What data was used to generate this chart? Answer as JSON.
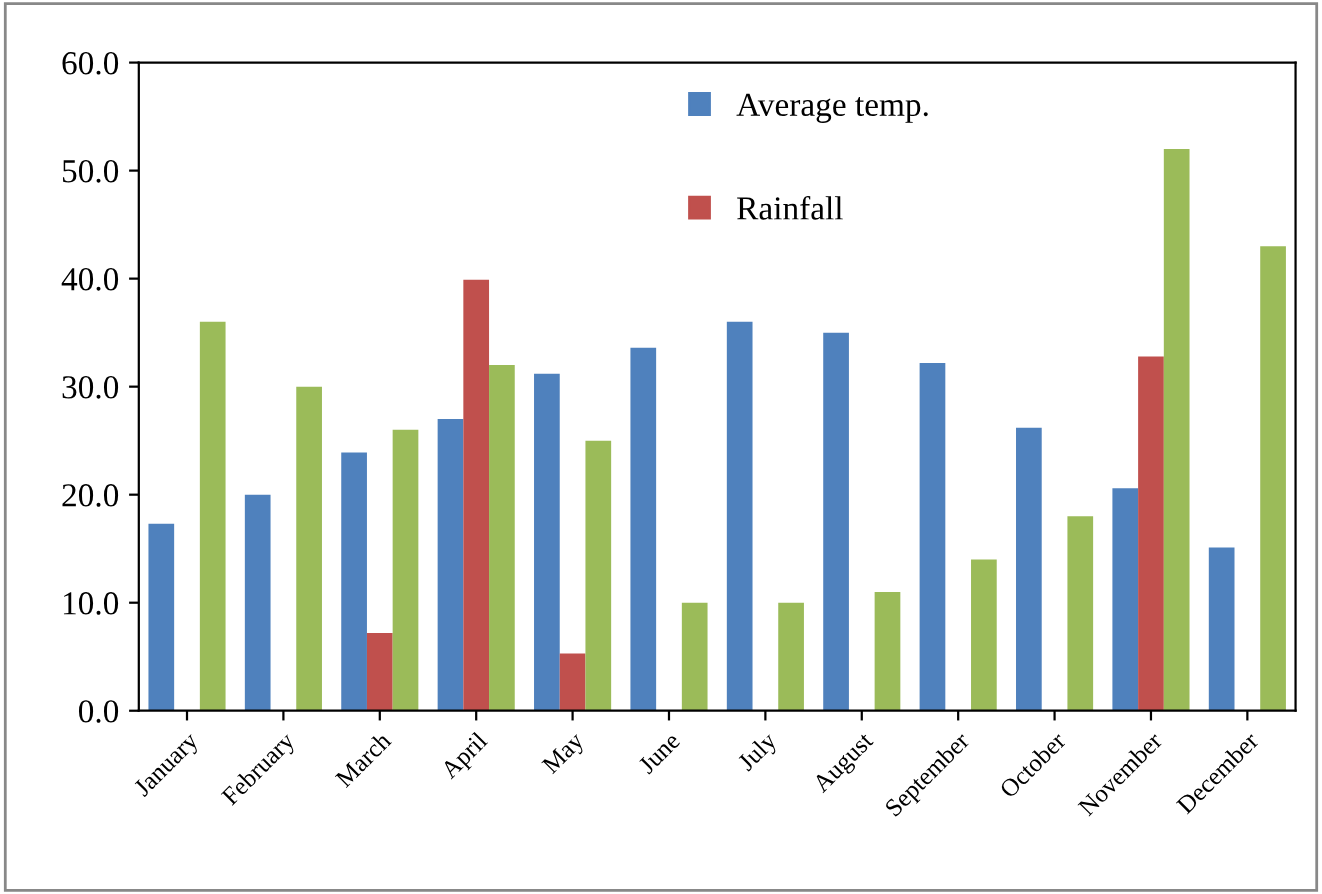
{
  "chart_data": {
    "type": "bar",
    "categories": [
      "January",
      "February",
      "March",
      "April",
      "May",
      "June",
      "July",
      "August",
      "September",
      "October",
      "November",
      "December"
    ],
    "series": [
      {
        "name": "Average temp.",
        "color": "#4f81bd",
        "values": [
          17.3,
          20.0,
          23.9,
          27.0,
          31.2,
          33.6,
          36.0,
          35.0,
          32.2,
          26.2,
          20.6,
          15.1
        ]
      },
      {
        "name": "Rainfall",
        "color": "#c0504d",
        "values": [
          null,
          null,
          7.2,
          39.9,
          5.3,
          null,
          null,
          null,
          null,
          null,
          32.8,
          null
        ]
      },
      {
        "color": "#9bbb59",
        "values": [
          36.0,
          30.0,
          26.0,
          32.0,
          25.0,
          10.0,
          10.0,
          11.0,
          14.0,
          18.0,
          52.0,
          43.0
        ]
      }
    ],
    "ylim": [
      0,
      60
    ],
    "yticks": [
      {
        "value": 0,
        "label": "0.0"
      },
      {
        "value": 10,
        "label": "10.0"
      },
      {
        "value": 20,
        "label": "20.0"
      },
      {
        "value": 30,
        "label": "30.0"
      },
      {
        "value": 40,
        "label": "40.0"
      },
      {
        "value": 50,
        "label": "50.0"
      },
      {
        "value": 60,
        "label": "60.0"
      }
    ],
    "grid": false,
    "legend": "top"
  }
}
